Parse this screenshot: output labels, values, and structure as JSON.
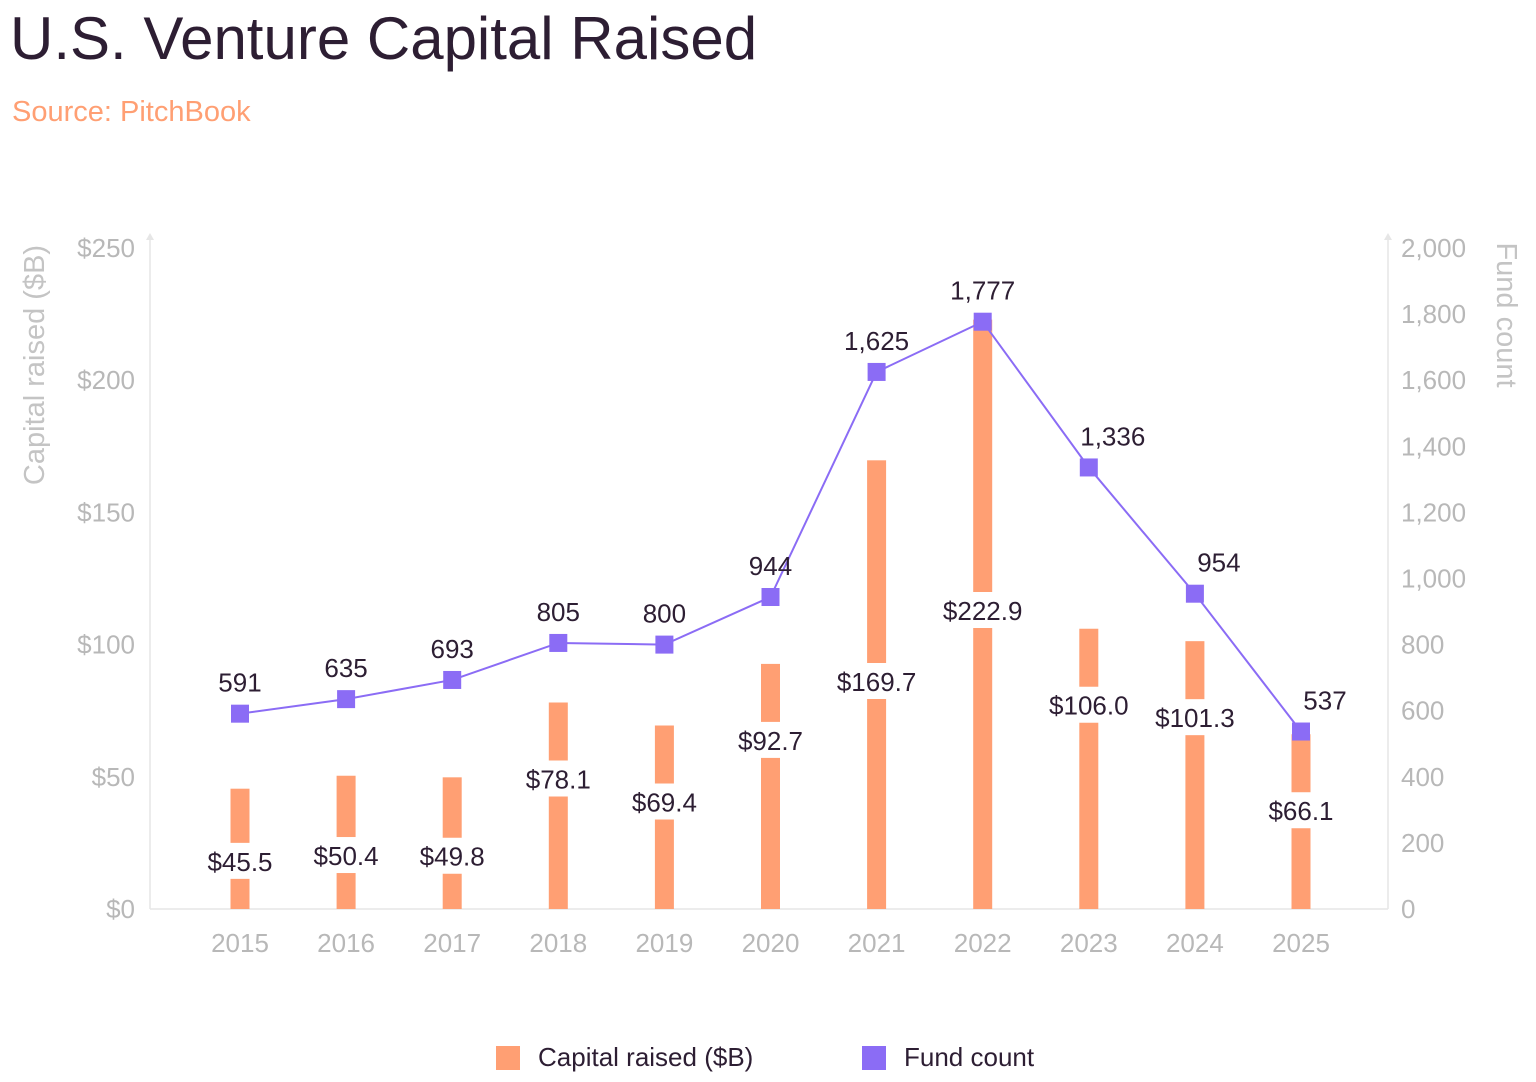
{
  "chart_data": {
    "type": "bar+line",
    "title": "U.S. Venture Capital Raised",
    "subtitle": "Source: PitchBook",
    "categories": [
      "2015",
      "2016",
      "2017",
      "2018",
      "2019",
      "2020",
      "2021",
      "2022",
      "2023",
      "2024",
      "2025"
    ],
    "series": [
      {
        "name": "Capital raised ($B)",
        "type": "bar",
        "axis": "left",
        "color": "#ff9f73",
        "values": [
          45.5,
          50.4,
          49.8,
          78.1,
          69.4,
          92.7,
          169.7,
          222.9,
          106.0,
          101.3,
          66.1
        ],
        "labels": [
          "$45.5",
          "$50.4",
          "$49.8",
          "$78.1",
          "$69.4",
          "$92.7",
          "$169.7",
          "$222.9",
          "$106.0",
          "$101.3",
          "$66.1"
        ]
      },
      {
        "name": "Fund count",
        "type": "line",
        "axis": "right",
        "color": "#8b6cf5",
        "values": [
          591,
          635,
          693,
          805,
          800,
          944,
          1625,
          1777,
          1336,
          954,
          537
        ],
        "labels": [
          "591",
          "635",
          "693",
          "805",
          "800",
          "944",
          "1,625",
          "1,777",
          "1,336",
          "954",
          "537"
        ]
      }
    ],
    "y_left": {
      "label": "Capital raised ($B)",
      "range": [
        0,
        250
      ],
      "ticks": [
        0,
        50,
        100,
        150,
        200,
        250
      ],
      "tick_labels": [
        "$0",
        "$50",
        "$100",
        "$150",
        "$200",
        "$250"
      ]
    },
    "y_right": {
      "label": "Fund count",
      "range": [
        0,
        2000
      ],
      "ticks": [
        0,
        200,
        400,
        600,
        800,
        1000,
        1200,
        1400,
        1600,
        1800,
        2000
      ],
      "tick_labels": [
        "0",
        "200",
        "400",
        "600",
        "800",
        "1,000",
        "1,200",
        "1,400",
        "1,600",
        "1,800",
        "2,000"
      ]
    },
    "legend": [
      {
        "label": "Capital raised ($B)",
        "color": "#ff9f73"
      },
      {
        "label": "Fund count",
        "color": "#8b6cf5"
      }
    ],
    "legend_position": "bottom-center",
    "grid": false
  }
}
